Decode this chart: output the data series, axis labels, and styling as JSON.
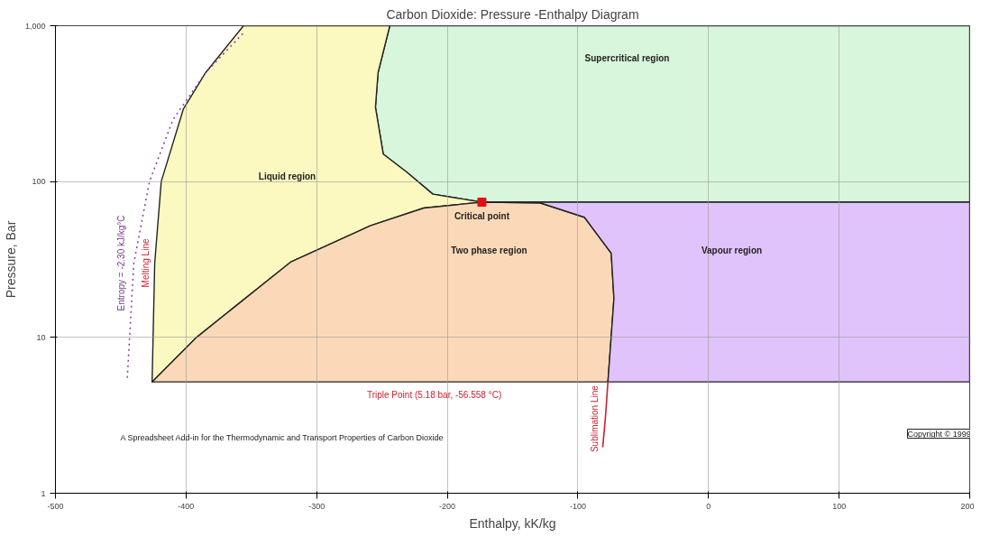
{
  "chart_data": {
    "type": "line",
    "title": "Carbon Dioxide: Pressure -Enthalpy Diagram",
    "xlabel": "Enthalpy, kK/kg",
    "ylabel": "Pressure, Bar",
    "xlim": [
      -500,
      200
    ],
    "ylim": [
      1,
      1000
    ],
    "xticks": [
      -500,
      -400,
      -300,
      -200,
      -100,
      0,
      100,
      200
    ],
    "yticks": [
      1,
      10,
      100,
      {
        "value": 1000,
        "label": "1,000"
      }
    ],
    "log": "y",
    "grid": true,
    "series": [
      {
        "type": "area",
        "color": "#d8f6dc",
        "x": [
          -244,
          200,
          200,
          -173.5,
          -211,
          -231,
          -249,
          -255,
          -253,
          -244
        ],
        "values": [
          1000,
          1000,
          73.8,
          73.8,
          83,
          115,
          150,
          300,
          500,
          1000
        ]
      },
      {
        "type": "area",
        "color": "#fbf8c0",
        "x": [
          -426,
          -424,
          -419,
          -402,
          -385,
          -356,
          -244,
          -253,
          -255,
          -249,
          -231,
          -211,
          -173.5,
          -218,
          -259,
          -320,
          -392,
          -426
        ],
        "values": [
          5.18,
          30,
          100,
          293,
          500,
          1000,
          1000,
          500,
          300,
          150,
          115,
          83,
          73.8,
          67.6,
          52,
          30.4,
          10,
          5.18
        ]
      },
      {
        "type": "area",
        "color": "#fbd9b8",
        "x": [
          -426,
          -392,
          -320,
          -259,
          -218,
          -173.5,
          -129,
          -95,
          -74.5,
          -72.4,
          -77,
          -426
        ],
        "values": [
          5.18,
          10,
          30.4,
          52,
          67.6,
          73.8,
          73,
          59,
          34.7,
          17.8,
          5.18,
          5.18
        ]
      },
      {
        "type": "area",
        "color": "#e0c3fb",
        "x": [
          -173.5,
          200,
          200,
          -77,
          -72.4,
          -74.5,
          -95,
          -129,
          -173.5
        ],
        "values": [
          73.8,
          73.8,
          5.18,
          5.18,
          17.8,
          34.7,
          59,
          73,
          73.8
        ]
      },
      {
        "color": "#cc2233",
        "x": [
          -77,
          -79,
          -81
        ],
        "values": [
          5.18,
          3,
          1.97
        ]
      },
      {
        "color": "#8a4a9a",
        "line_style": "dotted",
        "x": [
          -445,
          -440,
          -428,
          -410,
          -385,
          -356
        ],
        "values": [
          5.5,
          30,
          100,
          250,
          500,
          900
        ]
      },
      {
        "type": "scatter",
        "marker": "square",
        "color": "#dd1111",
        "x": [
          -173.5
        ],
        "values": [
          73.8
        ]
      }
    ],
    "annotations": [
      {
        "text": "Critical point",
        "x": -173.5,
        "y": 73.8
      },
      {
        "text": "Triple Point (5.18 bar, -56.558 °C)",
        "x": -210,
        "y": 5.18
      },
      {
        "text": "Melting Line",
        "x": -424,
        "y": 30
      },
      {
        "text": "Sublimation Line",
        "x": -79,
        "y": 3
      },
      {
        "text": "Entropy = -2.30 kJ/kg°C",
        "x": -440,
        "y": 30
      },
      "Liquid region",
      "Supercritical region",
      "Two phase region",
      "Vapour region",
      "A Spreadsheet Add-in for the Thermodynamic and Transport Properties of Carbon Dioxide",
      "Copyright © 1999"
    ]
  }
}
